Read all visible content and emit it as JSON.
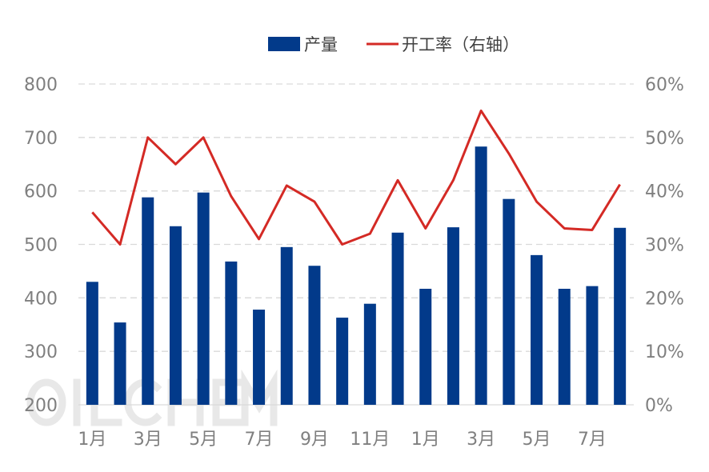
{
  "chart_data": {
    "type": "bar+line",
    "watermark": "OILCHEM",
    "xtick_labels": [
      "1月",
      "3月",
      "5月",
      "7月",
      "9月",
      "11月",
      "1月",
      "3月",
      "5月",
      "7月"
    ],
    "series": [
      {
        "name": "产量",
        "type": "bar",
        "axis": "left",
        "color": "#023A8A",
        "values": [
          430,
          354,
          588,
          534,
          597,
          468,
          378,
          495,
          460,
          363,
          389,
          522,
          417,
          532,
          683,
          585,
          480,
          417,
          422,
          531
        ]
      },
      {
        "name": "开工率（右轴）",
        "type": "line",
        "axis": "right",
        "color": "#D42A25",
        "values": [
          36,
          30,
          50,
          45,
          50,
          39,
          31,
          41,
          38,
          30,
          32,
          42,
          33,
          42,
          55,
          47,
          38,
          33,
          32.7,
          41.2
        ]
      }
    ],
    "left_axis": {
      "ylim": [
        200,
        800
      ],
      "ticks": [
        "200",
        "300",
        "400",
        "500",
        "600",
        "700",
        "800"
      ]
    },
    "right_axis": {
      "ylim": [
        0,
        60
      ],
      "ticks": [
        "0%",
        "10%",
        "20%",
        "30%",
        "40%",
        "50%",
        "60%"
      ]
    },
    "grid": "horizontal dashed",
    "legend": "top"
  }
}
